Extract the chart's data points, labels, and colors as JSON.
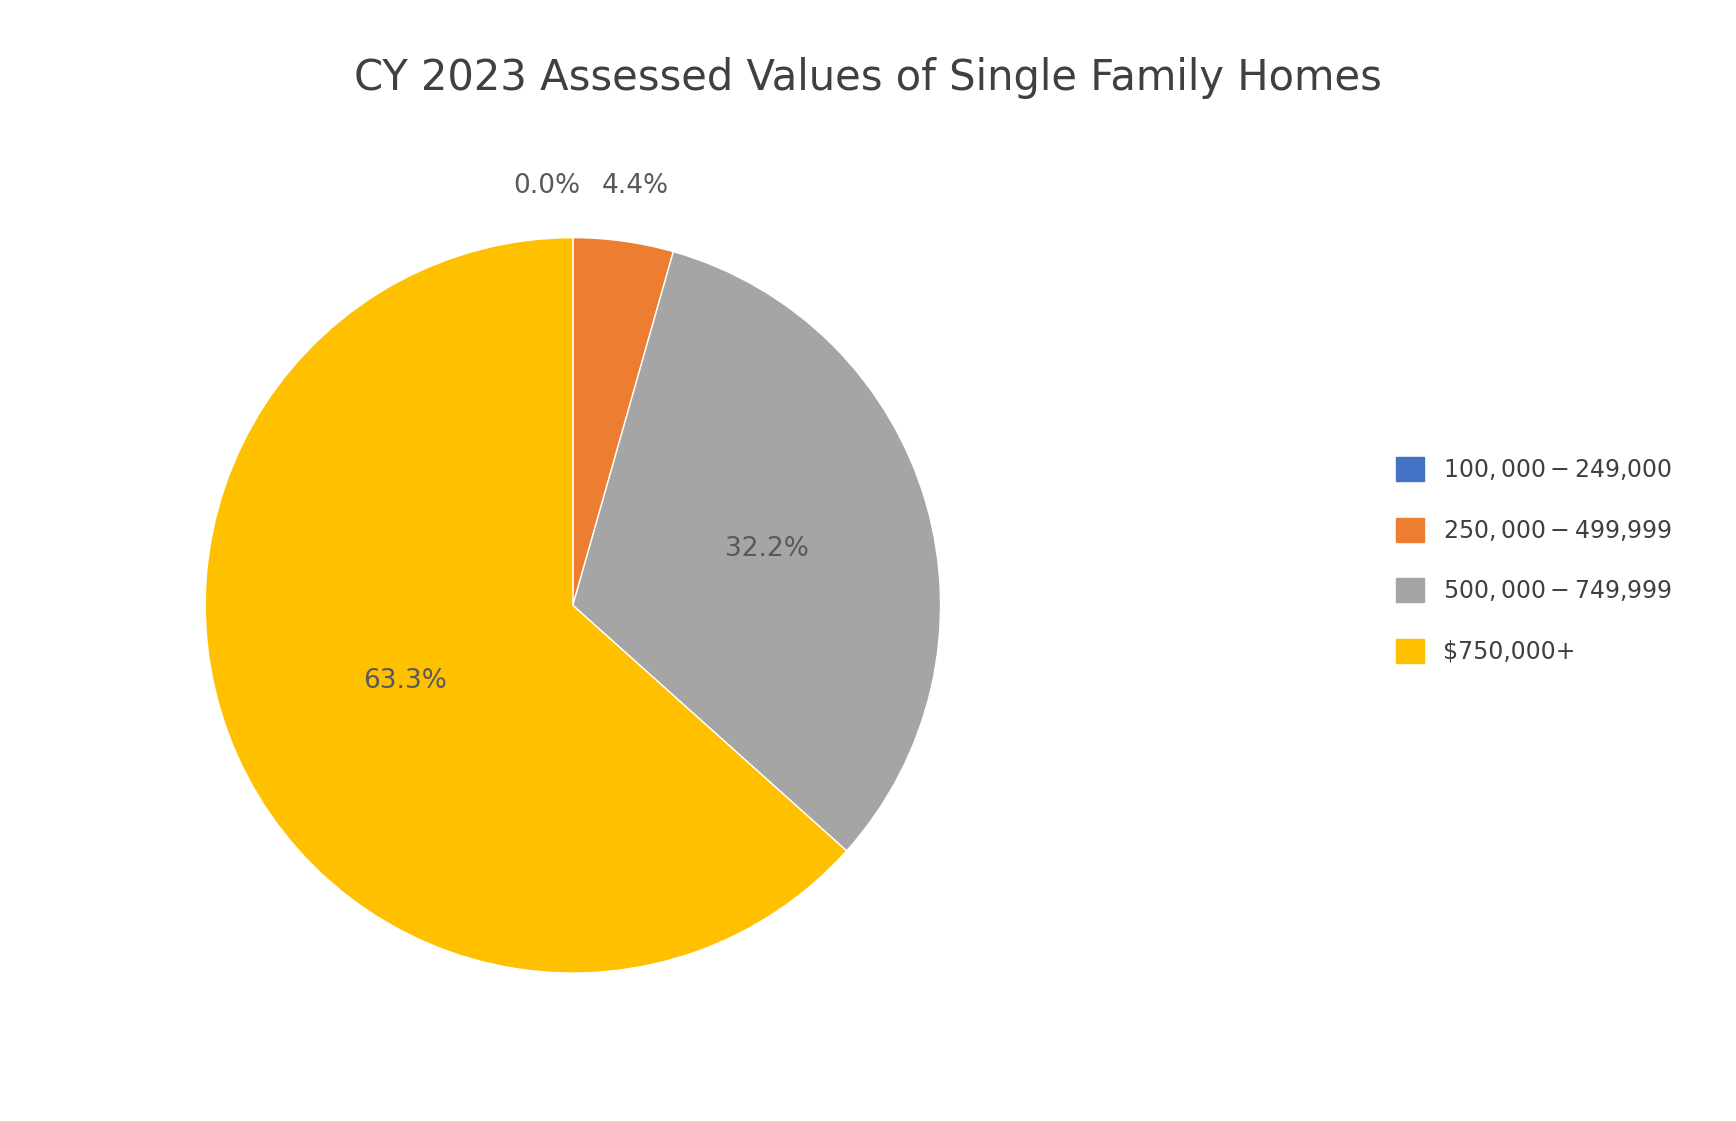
{
  "title": "CY 2023 Assessed Values of Single Family Homes",
  "slices": [
    0.0,
    4.4,
    32.2,
    63.3
  ],
  "labels": [
    "$100,000-$249,000",
    "$250,000-$499,999",
    "$500,000-$749,999",
    "$750,000+"
  ],
  "colors": [
    "#4472C4",
    "#ED7D31",
    "#A5A5A5",
    "#FFC000"
  ],
  "autopct_labels": [
    "0.0%",
    "4.4%",
    "32.2%",
    "63.3%"
  ],
  "title_fontsize": 30,
  "legend_fontsize": 17,
  "autopct_fontsize": 19,
  "background_color": "#FFFFFF",
  "startangle": 90,
  "label_text_color": "#595959"
}
